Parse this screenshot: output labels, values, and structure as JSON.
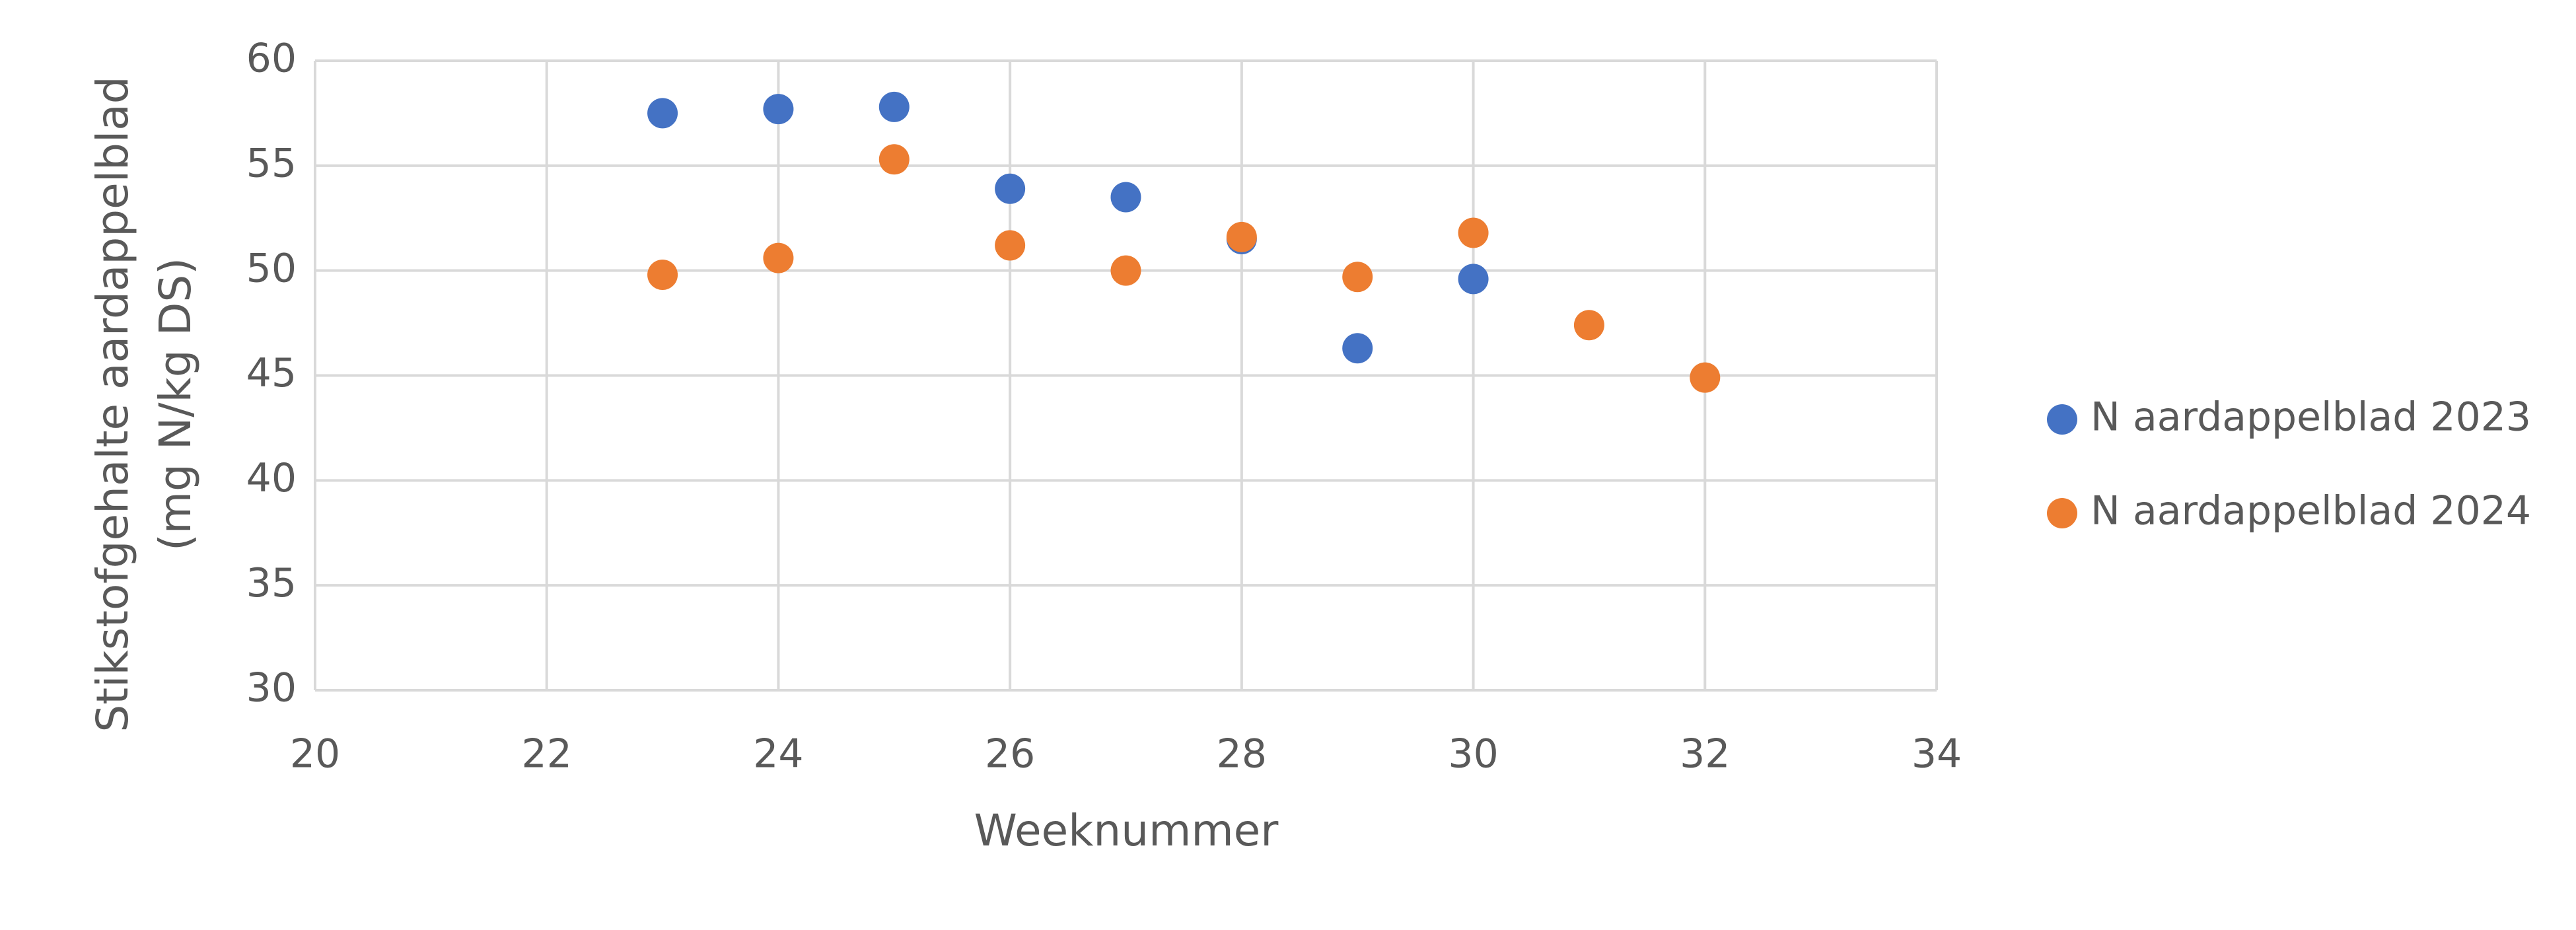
{
  "chart_data": {
    "type": "scatter",
    "xlabel": "Weeknummer",
    "ylabel": [
      "Stikstofgehalte aardappelblad",
      "(mg N/kg DS)"
    ],
    "series": [
      {
        "name": "N aardappelblad 2023",
        "color": "#4472c4",
        "x": [
          23,
          24,
          25,
          26,
          27,
          28,
          29,
          30
        ],
        "values": [
          57.5,
          57.7,
          57.8,
          53.9,
          53.5,
          51.5,
          46.3,
          49.6
        ]
      },
      {
        "name": "N aardappelblad 2024",
        "color": "#ed7d31",
        "x": [
          23,
          24,
          25,
          26,
          27,
          28,
          29,
          30,
          31,
          32
        ],
        "values": [
          49.8,
          50.6,
          55.3,
          51.2,
          50.0,
          51.6,
          49.7,
          51.8,
          47.4,
          44.9
        ]
      }
    ],
    "xlim": [
      20,
      34
    ],
    "xticks": [
      20,
      22,
      24,
      26,
      28,
      30,
      32,
      34
    ],
    "ylim": [
      30,
      60
    ],
    "yticks": [
      30,
      35,
      40,
      45,
      50,
      55,
      60
    ],
    "grid": true,
    "legend": "right"
  }
}
